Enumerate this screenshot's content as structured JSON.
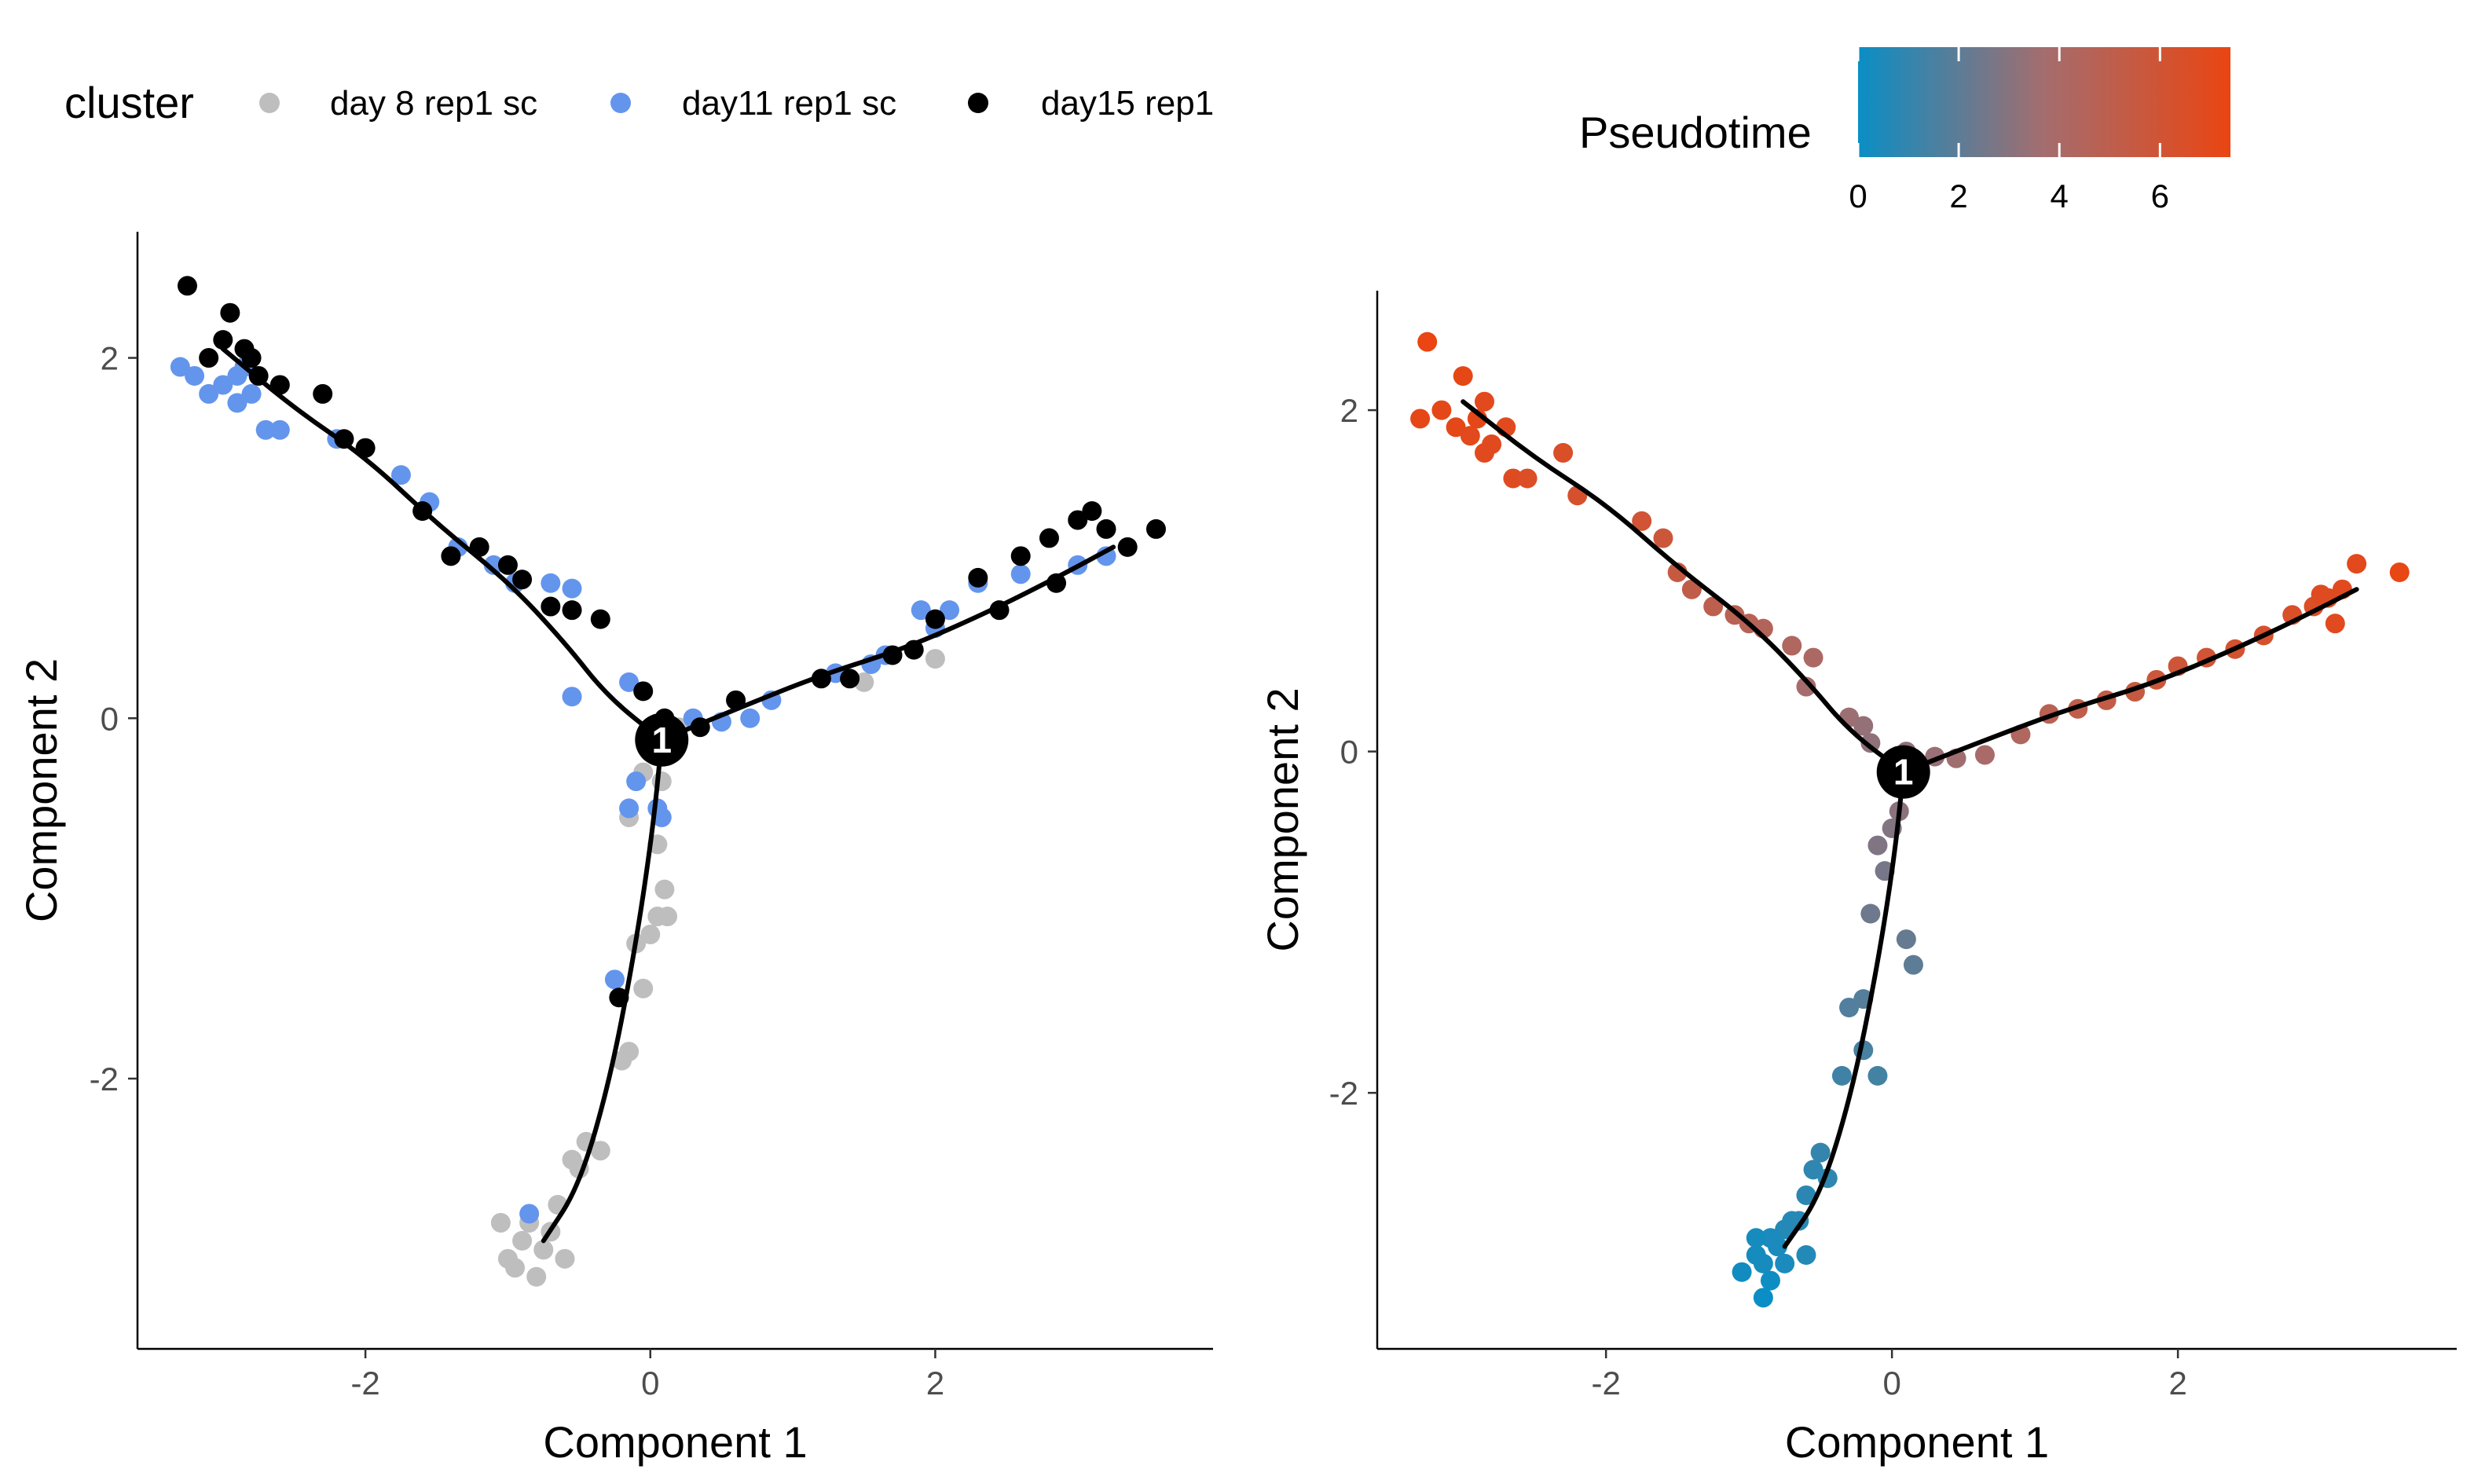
{
  "colors": {
    "day8": "#bebebe",
    "day11": "#6495ed",
    "day15": "#000000",
    "pseudotime_low": "#0a8ec5",
    "pseudotime_mid": "#a46d6e",
    "pseudotime_high": "#ea4512"
  },
  "legend": {
    "cluster_title": "cluster",
    "cluster_items": [
      {
        "label": "day 8 rep1 sc",
        "key": "day8"
      },
      {
        "label": "day11 rep1 sc",
        "key": "day11"
      },
      {
        "label": "day15 rep1",
        "key": "day15"
      }
    ],
    "pseudotime_title": "Pseudotime",
    "pseudotime_ticks": [
      "0",
      "2",
      "4",
      "6"
    ],
    "pseudotime_range": [
      0,
      7.4
    ]
  },
  "chart_data": [
    {
      "type": "scatter",
      "title": "",
      "xlabel": "Component 1",
      "ylabel": "Component 2",
      "xlim": [
        -3.6,
        3.95
      ],
      "ylim": [
        -3.5,
        2.7
      ],
      "xticks": [
        "-2",
        "0",
        "2"
      ],
      "yticks": [
        "-2",
        "0",
        "2"
      ],
      "color_by": "cluster",
      "branch_point": {
        "label": "1",
        "x": 0.08,
        "y": -0.12
      },
      "trajectory": [
        [
          [
            -3.0,
            2.05
          ],
          [
            -2.5,
            1.72
          ],
          [
            -2.0,
            1.45
          ],
          [
            -1.5,
            1.08
          ],
          [
            -1.0,
            0.76
          ],
          [
            -0.6,
            0.42
          ],
          [
            -0.3,
            0.12
          ],
          [
            0.08,
            -0.12
          ]
        ],
        [
          [
            0.08,
            -0.12
          ],
          [
            0.6,
            0.05
          ],
          [
            1.2,
            0.24
          ],
          [
            1.8,
            0.39
          ],
          [
            2.4,
            0.6
          ],
          [
            2.9,
            0.8
          ],
          [
            3.25,
            0.95
          ]
        ],
        [
          [
            0.08,
            -0.12
          ],
          [
            0.02,
            -0.6
          ],
          [
            -0.1,
            -1.25
          ],
          [
            -0.28,
            -2.0
          ],
          [
            -0.5,
            -2.6
          ],
          [
            -0.75,
            -2.9
          ]
        ]
      ],
      "series": [
        {
          "name": "day 8 rep1 sc",
          "x": [
            -1.0,
            -0.9,
            -0.8,
            -0.85,
            -0.7,
            -0.6,
            -0.75,
            -0.95,
            -1.05,
            -0.65,
            -0.5,
            -0.55,
            -0.45,
            -0.35,
            -0.2,
            -0.15,
            -0.05,
            0.0,
            0.05,
            0.1,
            0.12,
            0.05,
            -0.1,
            -0.15,
            0.15,
            0.08,
            -0.05,
            1.5,
            2.0,
            0.2
          ],
          "y": [
            -3.0,
            -2.9,
            -3.1,
            -2.8,
            -2.85,
            -3.0,
            -2.95,
            -3.05,
            -2.8,
            -2.7,
            -2.5,
            -2.45,
            -2.35,
            -2.4,
            -1.9,
            -1.85,
            -1.5,
            -1.2,
            -1.1,
            -0.95,
            -1.1,
            -0.7,
            -1.25,
            -0.55,
            -0.1,
            -0.35,
            -0.3,
            0.2,
            0.33,
            -0.05
          ]
        },
        {
          "name": "day11 rep1 sc",
          "x": [
            -3.3,
            -3.2,
            -3.1,
            -3.0,
            -2.9,
            -2.85,
            -2.8,
            -2.7,
            -2.6,
            -2.9,
            -2.2,
            -1.75,
            -1.55,
            -1.35,
            -1.1,
            -0.95,
            -0.7,
            -0.55,
            -0.55,
            -0.15,
            -0.15,
            -0.1,
            0.05,
            0.08,
            0.3,
            0.5,
            0.7,
            0.85,
            1.3,
            1.55,
            1.65,
            1.9,
            2.0,
            2.1,
            2.3,
            2.6,
            3.0,
            3.2,
            -0.25,
            -0.85
          ],
          "y": [
            1.95,
            1.9,
            1.8,
            1.85,
            1.75,
            1.95,
            1.8,
            1.6,
            1.6,
            1.9,
            1.55,
            1.35,
            1.2,
            0.95,
            0.85,
            0.75,
            0.75,
            0.72,
            0.12,
            0.2,
            -0.5,
            -0.35,
            -0.5,
            -0.55,
            0.0,
            -0.02,
            0.0,
            0.1,
            0.25,
            0.3,
            0.35,
            0.6,
            0.5,
            0.6,
            0.75,
            0.8,
            0.85,
            0.9,
            -1.45,
            -2.75
          ]
        },
        {
          "name": "day15 rep1",
          "x": [
            -3.25,
            -3.1,
            -3.0,
            -2.95,
            -2.85,
            -2.8,
            -2.75,
            -2.6,
            -2.3,
            -2.15,
            -2.0,
            -1.6,
            -1.4,
            -1.2,
            -1.0,
            -0.9,
            -0.7,
            -0.55,
            -0.35,
            -0.05,
            0.1,
            0.35,
            0.6,
            1.2,
            1.4,
            1.7,
            1.85,
            2.0,
            2.3,
            2.45,
            2.6,
            2.8,
            3.0,
            3.1,
            3.2,
            3.35,
            3.55,
            2.85,
            -0.22
          ],
          "y": [
            2.4,
            2.0,
            2.1,
            2.25,
            2.05,
            2.0,
            1.9,
            1.85,
            1.8,
            1.55,
            1.5,
            1.15,
            0.9,
            0.95,
            0.85,
            0.77,
            0.62,
            0.6,
            0.55,
            0.15,
            0.0,
            -0.05,
            0.1,
            0.22,
            0.22,
            0.35,
            0.38,
            0.55,
            0.78,
            0.6,
            0.9,
            1.0,
            1.1,
            1.15,
            1.05,
            0.95,
            1.05,
            0.75,
            -1.55
          ]
        }
      ]
    },
    {
      "type": "scatter",
      "title": "",
      "xlabel": "Component 1",
      "ylabel": "Component 2",
      "xlim": [
        -3.6,
        3.95
      ],
      "ylim": [
        -3.5,
        2.7
      ],
      "xticks": [
        "-2",
        "0",
        "2"
      ],
      "yticks": [
        "-2",
        "0",
        "2"
      ],
      "color_by": "Pseudotime",
      "branch_point": {
        "label": "1",
        "x": 0.08,
        "y": -0.12
      },
      "trajectory": [
        [
          [
            -3.0,
            2.05
          ],
          [
            -2.5,
            1.72
          ],
          [
            -2.0,
            1.45
          ],
          [
            -1.5,
            1.08
          ],
          [
            -1.0,
            0.76
          ],
          [
            -0.6,
            0.42
          ],
          [
            -0.3,
            0.12
          ],
          [
            0.08,
            -0.12
          ]
        ],
        [
          [
            0.08,
            -0.12
          ],
          [
            0.6,
            0.05
          ],
          [
            1.2,
            0.24
          ],
          [
            1.8,
            0.39
          ],
          [
            2.4,
            0.6
          ],
          [
            2.9,
            0.8
          ],
          [
            3.25,
            0.95
          ]
        ],
        [
          [
            0.08,
            -0.12
          ],
          [
            0.02,
            -0.6
          ],
          [
            -0.1,
            -1.25
          ],
          [
            -0.28,
            -2.0
          ],
          [
            -0.5,
            -2.6
          ],
          [
            -0.75,
            -2.9
          ]
        ]
      ],
      "points": {
        "x": [
          -3.25,
          -3.3,
          -3.15,
          -3.0,
          -2.95,
          -2.9,
          -2.85,
          -2.8,
          -2.7,
          -2.65,
          -3.05,
          -2.85,
          -2.55,
          -2.3,
          -2.2,
          -1.75,
          -1.6,
          -1.5,
          -1.4,
          -1.25,
          -1.1,
          -1.0,
          -0.9,
          -0.7,
          -0.55,
          -0.6,
          -0.3,
          -0.2,
          -0.15,
          0.1,
          0.3,
          0.45,
          0.65,
          0.9,
          1.1,
          1.3,
          1.5,
          1.7,
          1.85,
          2.0,
          2.2,
          2.4,
          2.6,
          2.8,
          2.95,
          3.05,
          3.15,
          3.25,
          3.55,
          3.1,
          3.0,
          0.05,
          0.0,
          -0.1,
          -0.05,
          -0.15,
          0.1,
          0.15,
          -0.2,
          -0.3,
          -0.2,
          -0.1,
          -0.35,
          -0.5,
          -0.55,
          -0.45,
          -0.6,
          -0.75,
          -0.85,
          -0.9,
          -0.95,
          -1.05,
          -0.8,
          -0.7,
          -0.65,
          -0.85,
          -0.95,
          -0.75,
          -0.6,
          -0.9
        ],
        "y": [
          2.4,
          1.95,
          2.0,
          2.2,
          1.85,
          1.95,
          2.05,
          1.8,
          1.9,
          1.6,
          1.9,
          1.75,
          1.6,
          1.75,
          1.5,
          1.35,
          1.25,
          1.05,
          0.95,
          0.85,
          0.8,
          0.75,
          0.72,
          0.62,
          0.55,
          0.38,
          0.2,
          0.15,
          0.05,
          0.0,
          -0.03,
          -0.04,
          -0.02,
          0.1,
          0.22,
          0.25,
          0.3,
          0.35,
          0.42,
          0.5,
          0.55,
          0.6,
          0.68,
          0.8,
          0.85,
          0.9,
          0.95,
          1.1,
          1.05,
          0.75,
          0.92,
          -0.35,
          -0.45,
          -0.55,
          -0.7,
          -0.95,
          -1.1,
          -1.25,
          -1.45,
          -1.5,
          -1.75,
          -1.9,
          -1.9,
          -2.35,
          -2.45,
          -2.5,
          -2.6,
          -2.8,
          -2.85,
          -3.0,
          -2.95,
          -3.05,
          -2.9,
          -2.75,
          -2.75,
          -3.1,
          -2.85,
          -3.0,
          -2.95,
          -3.2
        ],
        "pseudotime": [
          7.4,
          7.2,
          7.1,
          7.2,
          7.0,
          7.1,
          7.0,
          6.9,
          6.9,
          6.8,
          7.1,
          6.9,
          6.6,
          6.5,
          6.3,
          6.0,
          5.8,
          5.5,
          5.2,
          5.0,
          4.8,
          4.7,
          4.5,
          4.3,
          4.1,
          3.8,
          3.5,
          3.3,
          3.2,
          3.2,
          3.4,
          3.6,
          3.9,
          4.3,
          4.8,
          5.1,
          5.3,
          5.5,
          5.7,
          5.9,
          6.0,
          6.2,
          6.3,
          6.5,
          6.6,
          6.8,
          6.9,
          7.0,
          7.3,
          6.9,
          6.8,
          3.1,
          2.9,
          2.8,
          2.6,
          2.4,
          2.2,
          2.0,
          1.8,
          1.7,
          1.5,
          1.4,
          1.3,
          1.0,
          0.9,
          0.9,
          0.8,
          0.6,
          0.4,
          0.3,
          0.3,
          0.2,
          0.4,
          0.6,
          0.7,
          0.1,
          0.3,
          0.4,
          0.6,
          0.0
        ]
      }
    }
  ]
}
